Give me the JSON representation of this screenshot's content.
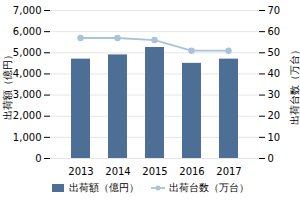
{
  "chart_data": {
    "type": "bar",
    "categories": [
      "2013",
      "2014",
      "2015",
      "2016",
      "2017"
    ],
    "series": [
      {
        "name": "出荷額（億円）",
        "type": "bar",
        "color": "#4d6f96",
        "values": [
          4700,
          4900,
          5250,
          4500,
          4700
        ]
      },
      {
        "name": "出荷台数（万台）",
        "type": "line",
        "color": "#a8c4d8",
        "marker": "circle",
        "axis": "y2",
        "values": [
          57,
          57,
          56,
          51,
          51
        ]
      }
    ],
    "ylabel": "出荷額（億円）",
    "y2label": "出荷台数（万台）",
    "ylim": [
      0,
      7000
    ],
    "yticks": [
      0,
      {
        "value": 1000,
        "label": "1,000"
      },
      {
        "value": 2000,
        "label": "2,000"
      },
      {
        "value": 3000,
        "label": "3,000"
      },
      {
        "value": 4000,
        "label": "4,000"
      },
      {
        "value": 5000,
        "label": "5,000"
      },
      {
        "value": 6000,
        "label": "6,000"
      },
      {
        "value": 7000,
        "label": "7,000"
      }
    ],
    "y2lim": [
      0,
      70
    ],
    "y2ticks": [
      0,
      10,
      20,
      30,
      40,
      50,
      60,
      70
    ],
    "grid": true,
    "legend": "bottom"
  }
}
